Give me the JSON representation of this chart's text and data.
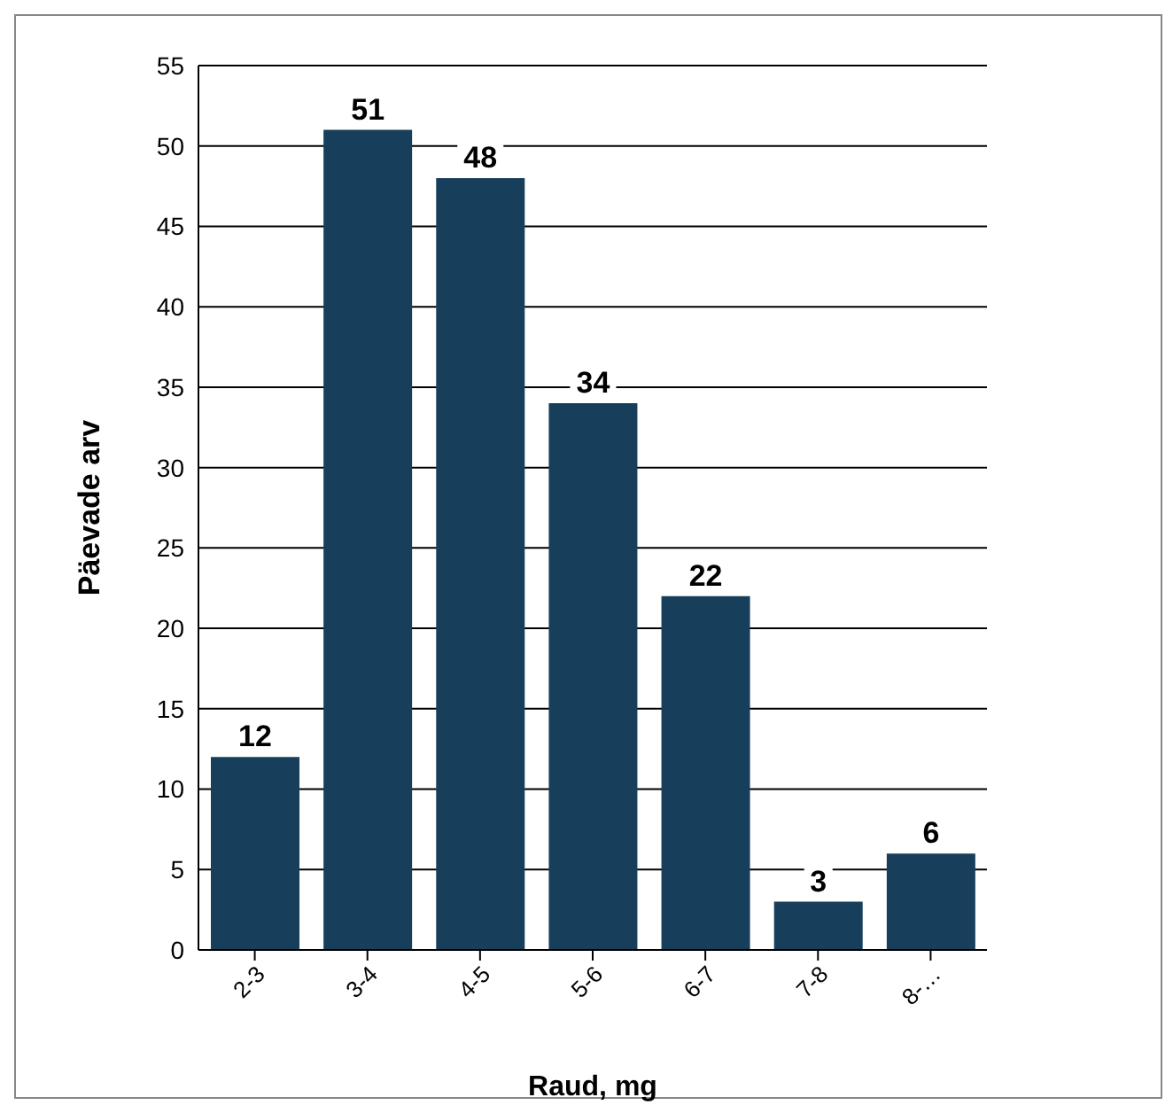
{
  "chart_data": {
    "type": "bar",
    "xlabel": "Raud, mg",
    "ylabel": "Päevade arv",
    "categories": [
      "2-3",
      "3-4",
      "4-5",
      "5-6",
      "6-7",
      "7-8",
      "8-…"
    ],
    "values": [
      12,
      51,
      48,
      34,
      22,
      3,
      6
    ],
    "color": "#173f5c",
    "ylim": [
      0,
      55
    ],
    "yticks": [
      0,
      5,
      10,
      15,
      20,
      25,
      30,
      35,
      40,
      45,
      50,
      55
    ],
    "grid": "y",
    "data_labels": true
  }
}
